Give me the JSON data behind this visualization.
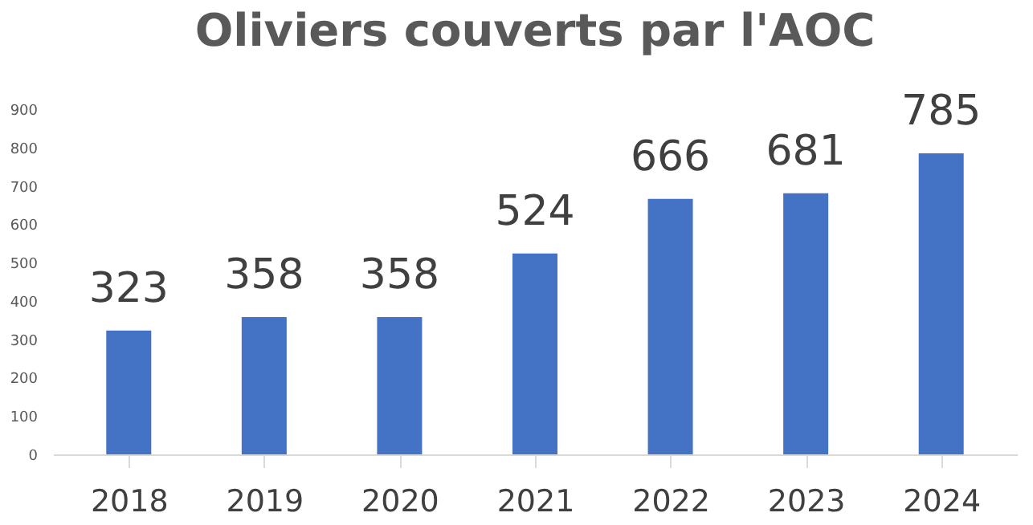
{
  "chart_data": {
    "type": "bar",
    "title": "Oliviers couverts par l'AOC",
    "categories": [
      "2018",
      "2019",
      "2020",
      "2021",
      "2022",
      "2023",
      "2024"
    ],
    "values": [
      323,
      358,
      358,
      524,
      666,
      681,
      785
    ],
    "color": "#4472c4",
    "ylim": [
      0,
      900
    ],
    "yticks": [
      0,
      100,
      200,
      300,
      400,
      500,
      600,
      700,
      800,
      900
    ],
    "grid": false,
    "data_labels": true
  }
}
